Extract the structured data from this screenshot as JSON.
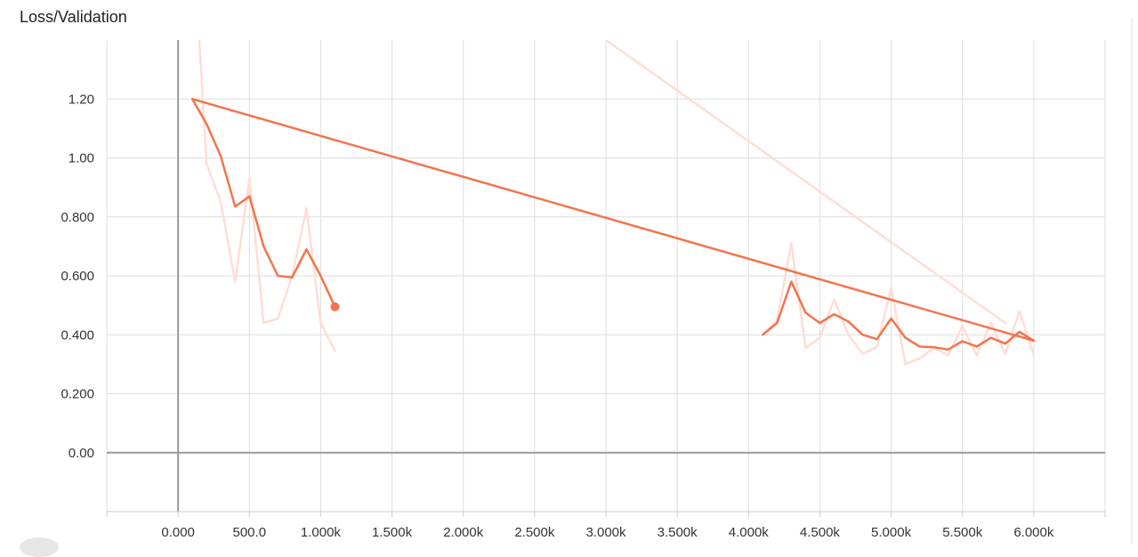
{
  "chart_data": {
    "type": "line",
    "title": "Loss/Validation",
    "xlabel": "",
    "ylabel": "",
    "xlim": [
      -500,
      6500
    ],
    "ylim": [
      -0.2,
      1.4
    ],
    "grid": true,
    "x_ticks": [
      {
        "value": 0,
        "label": "0.000"
      },
      {
        "value": 500,
        "label": "500.0"
      },
      {
        "value": 1000,
        "label": "1.000k"
      },
      {
        "value": 1500,
        "label": "1.500k"
      },
      {
        "value": 2000,
        "label": "2.000k"
      },
      {
        "value": 2500,
        "label": "2.500k"
      },
      {
        "value": 3000,
        "label": "3.000k"
      },
      {
        "value": 3500,
        "label": "3.500k"
      },
      {
        "value": 4000,
        "label": "4.000k"
      },
      {
        "value": 4500,
        "label": "4.500k"
      },
      {
        "value": 5000,
        "label": "5.000k"
      },
      {
        "value": 5500,
        "label": "5.500k"
      },
      {
        "value": 6000,
        "label": "6.000k"
      }
    ],
    "y_ticks": [
      {
        "value": 0,
        "label": "0.00"
      },
      {
        "value": 0.2,
        "label": "0.200"
      },
      {
        "value": 0.4,
        "label": "0.400"
      },
      {
        "value": 0.6,
        "label": "0.600"
      },
      {
        "value": 0.8,
        "label": "0.800"
      },
      {
        "value": 1.0,
        "label": "1.00"
      },
      {
        "value": 1.2,
        "label": "1.20"
      }
    ],
    "series": [
      {
        "role": "raw",
        "color": "#ffddd4",
        "segments": [
          {
            "x": [
              100,
              200,
              300,
              400,
              500,
              600,
              700,
              800,
              900,
              1000,
              1100
            ],
            "y": [
              1.8,
              0.98,
              0.85,
              0.58,
              0.93,
              0.44,
              0.455,
              0.6,
              0.83,
              0.44,
              0.345
            ]
          },
          {
            "x": [
              3000,
              5800
            ],
            "y": [
              1.4,
              0.44
            ]
          },
          {
            "x": [
              4100,
              4200,
              4300,
              4400,
              4500,
              4600,
              4700,
              4800,
              4900,
              5000,
              5100,
              5200,
              5300,
              5400,
              5500,
              5600,
              5700,
              5800,
              5900,
              6000
            ],
            "y": [
              0.4,
              0.45,
              0.71,
              0.355,
              0.39,
              0.52,
              0.4,
              0.335,
              0.36,
              0.56,
              0.3,
              0.32,
              0.355,
              0.33,
              0.43,
              0.33,
              0.44,
              0.335,
              0.48,
              0.33
            ]
          }
        ]
      },
      {
        "role": "smoothed",
        "color": "#f3744c",
        "segments": [
          {
            "x": [
              100,
              200,
              300,
              400,
              500,
              600,
              700,
              800,
              900,
              1000,
              1100
            ],
            "y": [
              1.2,
              1.115,
              1.005,
              0.835,
              0.87,
              0.7,
              0.6,
              0.595,
              0.69,
              0.6,
              0.495
            ]
          },
          {
            "x": [
              100,
              6000
            ],
            "y": [
              1.2,
              0.38
            ]
          },
          {
            "x": [
              4100,
              4200,
              4300,
              4400,
              4500,
              4600,
              4700,
              4800,
              4900,
              5000,
              5100,
              5200,
              5300,
              5400,
              5500,
              5600,
              5700,
              5800,
              5900,
              6000
            ],
            "y": [
              0.4,
              0.44,
              0.58,
              0.475,
              0.44,
              0.47,
              0.445,
              0.4,
              0.385,
              0.455,
              0.39,
              0.36,
              0.358,
              0.35,
              0.378,
              0.36,
              0.39,
              0.37,
              0.41,
              0.38
            ]
          }
        ],
        "end_marker": {
          "x": 1100,
          "y": 0.495
        }
      }
    ]
  }
}
